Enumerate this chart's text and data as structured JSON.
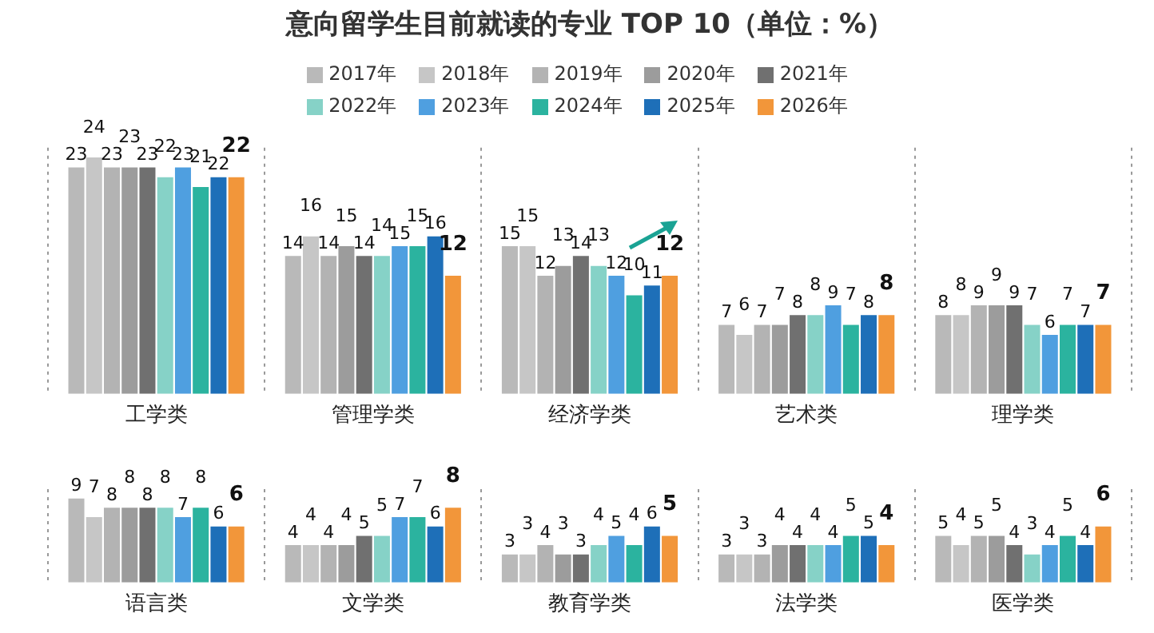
{
  "chart_data": [
    {
      "type": "bar",
      "title": "意向留学生目前就读的专业 TOP 10（单位：%）",
      "categories": [
        "工学类",
        "管理学类",
        "经济学类",
        "艺术类",
        "理学类"
      ],
      "data_labels": true,
      "grid": "x",
      "legend": "top",
      "tick_labels": "x",
      "series": [
        {
          "name": "2017年",
          "color": "#b9b9b9",
          "values": [
            23,
            14,
            15,
            7,
            8
          ]
        },
        {
          "name": "2018年",
          "color": "#c6c6c6",
          "values": [
            24,
            16,
            15,
            6,
            8
          ]
        },
        {
          "name": "2019年",
          "color": "#b3b3b3",
          "values": [
            23,
            14,
            12,
            7,
            9
          ]
        },
        {
          "name": "2020年",
          "color": "#9c9c9c",
          "values": [
            23,
            15,
            13,
            7,
            9
          ]
        },
        {
          "name": "2021年",
          "color": "#707070",
          "values": [
            23,
            14,
            14,
            8,
            9
          ]
        },
        {
          "name": "2022年",
          "color": "#86d2c7",
          "values": [
            22,
            14,
            13,
            8,
            7
          ]
        },
        {
          "name": "2023年",
          "color": "#4f9fe0",
          "values": [
            23,
            15,
            12,
            9,
            6
          ]
        },
        {
          "name": "2024年",
          "color": "#2bb39f",
          "values": [
            21,
            15,
            10,
            7,
            7
          ]
        },
        {
          "name": "2025年",
          "color": "#1e6fb8",
          "values": [
            22,
            16,
            11,
            8,
            7
          ]
        },
        {
          "name": "2026年",
          "color": "#f2963a",
          "values": [
            22,
            12,
            12,
            8,
            7
          ]
        }
      ]
    },
    {
      "type": "bar",
      "categories": [
        "语言类",
        "文学类",
        "教育学类",
        "法学类",
        "医学类"
      ],
      "data_labels": true,
      "grid": "x",
      "tick_labels": "x",
      "series": [
        {
          "color": "#b9b9b9",
          "values": [
            9,
            4,
            3,
            3,
            5
          ]
        },
        {
          "color": "#c6c6c6",
          "values": [
            7,
            4,
            3,
            3,
            4
          ]
        },
        {
          "color": "#b3b3b3",
          "values": [
            8,
            4,
            4,
            3,
            5
          ]
        },
        {
          "color": "#9c9c9c",
          "values": [
            8,
            4,
            3,
            4,
            5
          ]
        },
        {
          "color": "#707070",
          "values": [
            8,
            5,
            3,
            4,
            4
          ]
        },
        {
          "color": "#86d2c7",
          "values": [
            8,
            5,
            4,
            4,
            3
          ]
        },
        {
          "color": "#4f9fe0",
          "values": [
            7,
            7,
            5,
            4,
            4
          ]
        },
        {
          "color": "#2bb39f",
          "values": [
            8,
            7,
            4,
            5,
            5
          ]
        },
        {
          "color": "#1e6fb8",
          "values": [
            6,
            6,
            6,
            5,
            4
          ]
        },
        {
          "color": "#f2963a",
          "values": [
            6,
            8,
            5,
            4,
            6
          ]
        }
      ]
    }
  ]
}
